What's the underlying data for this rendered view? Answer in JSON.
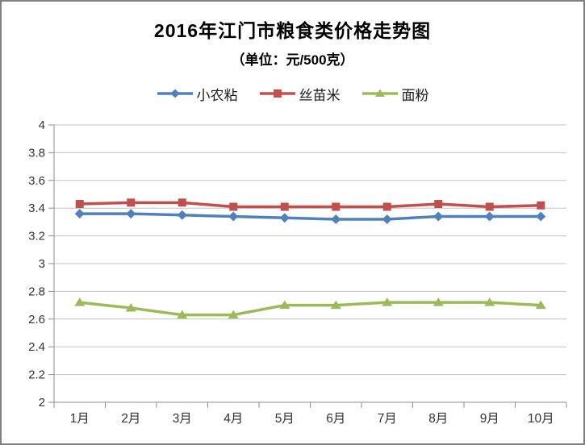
{
  "chart_data": {
    "type": "line",
    "title": "2016年江门市粮食类价格走势图",
    "subtitle": "（单位：元/500克）",
    "categories": [
      "1月",
      "2月",
      "3月",
      "4月",
      "5月",
      "6月",
      "7月",
      "8月",
      "9月",
      "10月"
    ],
    "series": [
      {
        "name": "小农粘",
        "marker": "diamond",
        "color": "#4F81BD",
        "values": [
          3.36,
          3.36,
          3.35,
          3.34,
          3.33,
          3.32,
          3.32,
          3.34,
          3.34,
          3.34
        ]
      },
      {
        "name": "丝苗米",
        "marker": "square",
        "color": "#C0504D",
        "values": [
          3.43,
          3.44,
          3.44,
          3.41,
          3.41,
          3.41,
          3.41,
          3.43,
          3.41,
          3.42
        ]
      },
      {
        "name": "面粉",
        "marker": "triangle",
        "color": "#9BBB59",
        "values": [
          2.72,
          2.68,
          2.63,
          2.63,
          2.7,
          2.7,
          2.72,
          2.72,
          2.72,
          2.7
        ]
      }
    ],
    "ylim": [
      2,
      4
    ],
    "ytick_step": 0.2,
    "ytick_labels": [
      "4",
      "3.8",
      "3.6",
      "3.4",
      "3.2",
      "3",
      "2.8",
      "2.6",
      "2.4",
      "2.2",
      "2"
    ],
    "grid": true,
    "legend_position": "top-center",
    "colors": {
      "background": "#FFFFFF",
      "frame_border": "#7F7F7F",
      "gridline": "#C3C3C3",
      "axis": "#8C8C8C",
      "tick_label": "#333333",
      "title_text": "#000000"
    }
  }
}
